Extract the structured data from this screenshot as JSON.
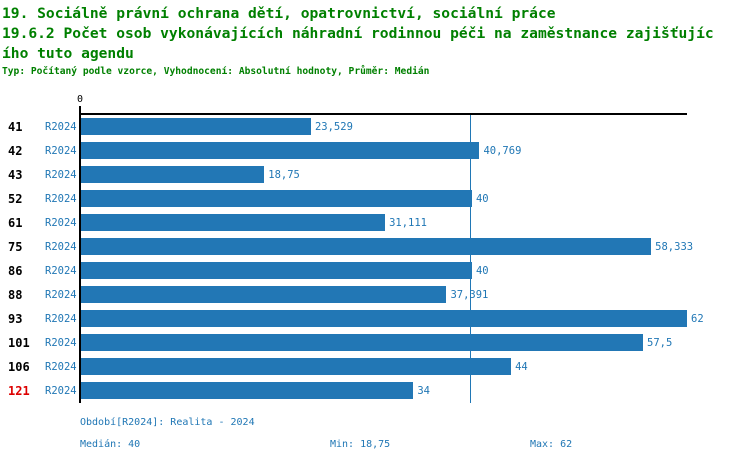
{
  "header": {
    "title_line1": "19. Sociálně právní ochrana dětí, opatrovnictví, sociální práce",
    "title_line2": "19.6.2 Počet osob vykonávajících náhradní rodinnou péči na zaměstnance zajišťujíc",
    "title_line3": "ího tuto agendu",
    "meta": "Typ: Počítaný podle vzorce, Vyhodnocení: Absolutní hodnoty, Průměr: Medián"
  },
  "chart_data": {
    "type": "bar",
    "orientation": "horizontal",
    "title": "19.6.2 Počet osob vykonávajících náhradní rodinnou péči na zaměstnance zajišťujícího tuto agendu",
    "zero_label": "0",
    "xlim": [
      0,
      62
    ],
    "median_value": 40,
    "series_label": "R2024",
    "categories": [
      "41",
      "42",
      "43",
      "52",
      "61",
      "75",
      "86",
      "88",
      "93",
      "101",
      "106",
      "121"
    ],
    "values": [
      23.529,
      40.769,
      18.75,
      40,
      31.111,
      58.333,
      40,
      37.391,
      62,
      57.5,
      44,
      34
    ],
    "rows": [
      {
        "id": "41",
        "period": "R2024",
        "value": 23.529,
        "label": "23,529",
        "highlight": false
      },
      {
        "id": "42",
        "period": "R2024",
        "value": 40.769,
        "label": "40,769",
        "highlight": false
      },
      {
        "id": "43",
        "period": "R2024",
        "value": 18.75,
        "label": "18,75",
        "highlight": false
      },
      {
        "id": "52",
        "period": "R2024",
        "value": 40,
        "label": "40",
        "highlight": false
      },
      {
        "id": "61",
        "period": "R2024",
        "value": 31.111,
        "label": "31,111",
        "highlight": false
      },
      {
        "id": "75",
        "period": "R2024",
        "value": 58.333,
        "label": "58,333",
        "highlight": false
      },
      {
        "id": "86",
        "period": "R2024",
        "value": 40,
        "label": "40",
        "highlight": false
      },
      {
        "id": "88",
        "period": "R2024",
        "value": 37.391,
        "label": "37,391",
        "highlight": false
      },
      {
        "id": "93",
        "period": "R2024",
        "value": 62,
        "label": "62",
        "highlight": false
      },
      {
        "id": "101",
        "period": "R2024",
        "value": 57.5,
        "label": "57,5",
        "highlight": false
      },
      {
        "id": "106",
        "period": "R2024",
        "value": 44,
        "label": "44",
        "highlight": false
      },
      {
        "id": "121",
        "period": "R2024",
        "value": 34,
        "label": "34",
        "highlight": true
      }
    ]
  },
  "footer": {
    "period_info": "Období[R2024]: Realita - 2024",
    "median": "Medián: 40",
    "min": "Min: 18,75",
    "max": "Max: 62"
  },
  "colors": {
    "title_green": "#008000",
    "bar_blue": "#2277B5",
    "label_blue": "#2077B5",
    "highlight_red": "#DD0000",
    "axis_black": "#000000",
    "background": "#FFFFFF"
  }
}
